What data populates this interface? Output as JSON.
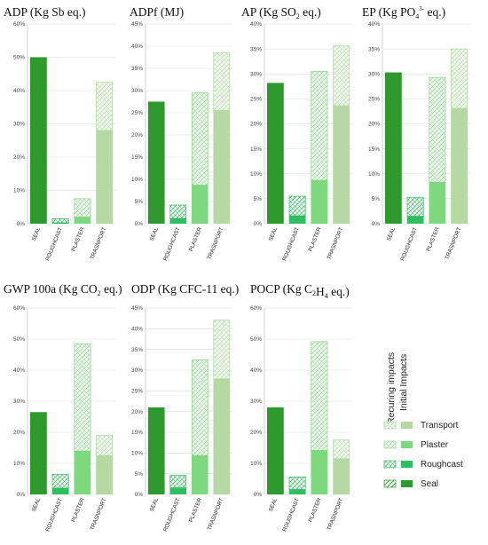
{
  "colors": {
    "seal": "#2e9a2e",
    "roughcast": "#2fbf62",
    "plaster": "#7ed87e",
    "transport": "#b6d9a4",
    "hatch_seal": "#2e9a2e",
    "hatch_roughcast": "#37b760",
    "hatch_plaster": "#86d486",
    "hatch_transport": "#a9d99e"
  },
  "legend": {
    "header_recurring": "Recuring impacts",
    "header_initial": "Initial Impacts",
    "items": [
      {
        "label": "Transport",
        "key": "transport"
      },
      {
        "label": "Plaster",
        "key": "plaster"
      },
      {
        "label": "Roughcast",
        "key": "roughcast"
      },
      {
        "label": "Seal",
        "key": "seal"
      }
    ]
  },
  "chart_data": [
    {
      "type": "bar",
      "title": "ADP (Kg Sb eq.)",
      "categories": [
        "SEAL",
        "ROUGHCAST",
        "PLASTER",
        "TRASNPORT"
      ],
      "series": [
        {
          "name": "Initial Impacts",
          "values": [
            50,
            0.3,
            2,
            28
          ]
        },
        {
          "name": "Recuring impacts",
          "values": [
            0,
            1.2,
            5.5,
            14.5
          ]
        }
      ],
      "ylim": [
        0,
        60
      ],
      "yticks": [
        0,
        10,
        20,
        30,
        40,
        50,
        60
      ],
      "ytick_labels": [
        "0%",
        "10%",
        "20%",
        "30%",
        "40%",
        "50%",
        "60%"
      ]
    },
    {
      "type": "bar",
      "title": "ADPf (MJ)",
      "categories": [
        "SEAL",
        "ROUGHCAST",
        "PLASTER",
        "TRASNPORT"
      ],
      "series": [
        {
          "name": "Initial Impacts",
          "values": [
            27.5,
            1.2,
            8.7,
            25.5
          ]
        },
        {
          "name": "Recuring impacts",
          "values": [
            0,
            3,
            20.8,
            13
          ]
        }
      ],
      "ylim": [
        0,
        45
      ],
      "yticks": [
        0,
        5,
        10,
        15,
        20,
        25,
        30,
        35,
        40,
        45
      ],
      "ytick_labels": [
        "0%",
        "5%",
        "10%",
        "15%",
        "20%",
        "25%",
        "30%",
        "35%",
        "40%",
        "45%"
      ]
    },
    {
      "type": "bar",
      "title": "AP (Kg SO2 eq.)",
      "categories": [
        "SEAL",
        "ROUGHCAST",
        "PLASTER",
        "TRASNPORT"
      ],
      "series": [
        {
          "name": "Initial Impacts",
          "values": [
            28.2,
            1.6,
            8.7,
            23.6
          ]
        },
        {
          "name": "Recuring impacts",
          "values": [
            0,
            3.9,
            21.8,
            12
          ]
        }
      ],
      "ylim": [
        0,
        40
      ],
      "yticks": [
        0,
        5,
        10,
        15,
        20,
        25,
        30,
        35,
        40
      ],
      "ytick_labels": [
        "0%",
        "5%",
        "10%",
        "15%",
        "20%",
        "25%",
        "30%",
        "35%",
        "40%"
      ]
    },
    {
      "type": "bar",
      "title": "EP (Kg PO43- eq.)",
      "categories": [
        "SEAL",
        "ROUGHCAST",
        "PLASTER",
        "TRASNPORT"
      ],
      "series": [
        {
          "name": "Initial Impacts",
          "values": [
            30.3,
            1.5,
            8.3,
            23.1
          ]
        },
        {
          "name": "Recuring impacts",
          "values": [
            0,
            3.8,
            21,
            11.9
          ]
        }
      ],
      "ylim": [
        0,
        40
      ],
      "yticks": [
        0,
        5,
        10,
        15,
        20,
        25,
        30,
        35,
        40
      ],
      "ytick_labels": [
        "0%",
        "5%",
        "10%",
        "15%",
        "20%",
        "25%",
        "30%",
        "35%",
        "40%"
      ]
    },
    {
      "type": "bar",
      "title": "GWP 100a (Kg CO2 eq.)",
      "categories": [
        "SEAL",
        "ROUGHCAST",
        "PLASTER",
        "TRASNPORT"
      ],
      "series": [
        {
          "name": "Initial Impacts",
          "values": [
            26.5,
            2,
            14,
            12.5
          ]
        },
        {
          "name": "Recuring impacts",
          "values": [
            0,
            4.5,
            34.5,
            6.5
          ]
        }
      ],
      "ylim": [
        0,
        60
      ],
      "yticks": [
        0,
        10,
        20,
        30,
        40,
        50,
        60
      ],
      "ytick_labels": [
        "0%",
        "10%",
        "20%",
        "30%",
        "40%",
        "50%",
        "60%"
      ]
    },
    {
      "type": "bar",
      "title": "ODP (Kg CFC-11 eq.)",
      "categories": [
        "SEAL",
        "ROUGHCAST",
        "PLASTER",
        "TRASNPORT"
      ],
      "series": [
        {
          "name": "Initial Impacts",
          "values": [
            21,
            1.6,
            9.4,
            27.9
          ]
        },
        {
          "name": "Recuring impacts",
          "values": [
            0,
            3,
            23.1,
            14.2
          ]
        }
      ],
      "ylim": [
        0,
        45
      ],
      "yticks": [
        0,
        5,
        10,
        15,
        20,
        25,
        30,
        35,
        40,
        45
      ],
      "ytick_labels": [
        "0%",
        "5%",
        "10%",
        "15%",
        "20%",
        "25%",
        "30%",
        "35%",
        "40%",
        "45%"
      ]
    },
    {
      "type": "bar",
      "title": "POCP (Kg C2H4 eq.)",
      "categories": [
        "SEAL",
        "ROUGHCAST",
        "PLASTER",
        "TRASNPORT"
      ],
      "series": [
        {
          "name": "Initial Impacts",
          "values": [
            28,
            1.6,
            14.2,
            11.5
          ]
        },
        {
          "name": "Recuring impacts",
          "values": [
            0,
            4,
            35,
            6
          ]
        }
      ],
      "ylim": [
        0,
        60
      ],
      "yticks": [
        0,
        10,
        20,
        30,
        40,
        50,
        60
      ],
      "ytick_labels": [
        "0%",
        "10%",
        "20%",
        "30%",
        "40%",
        "50%",
        "60%"
      ]
    }
  ]
}
